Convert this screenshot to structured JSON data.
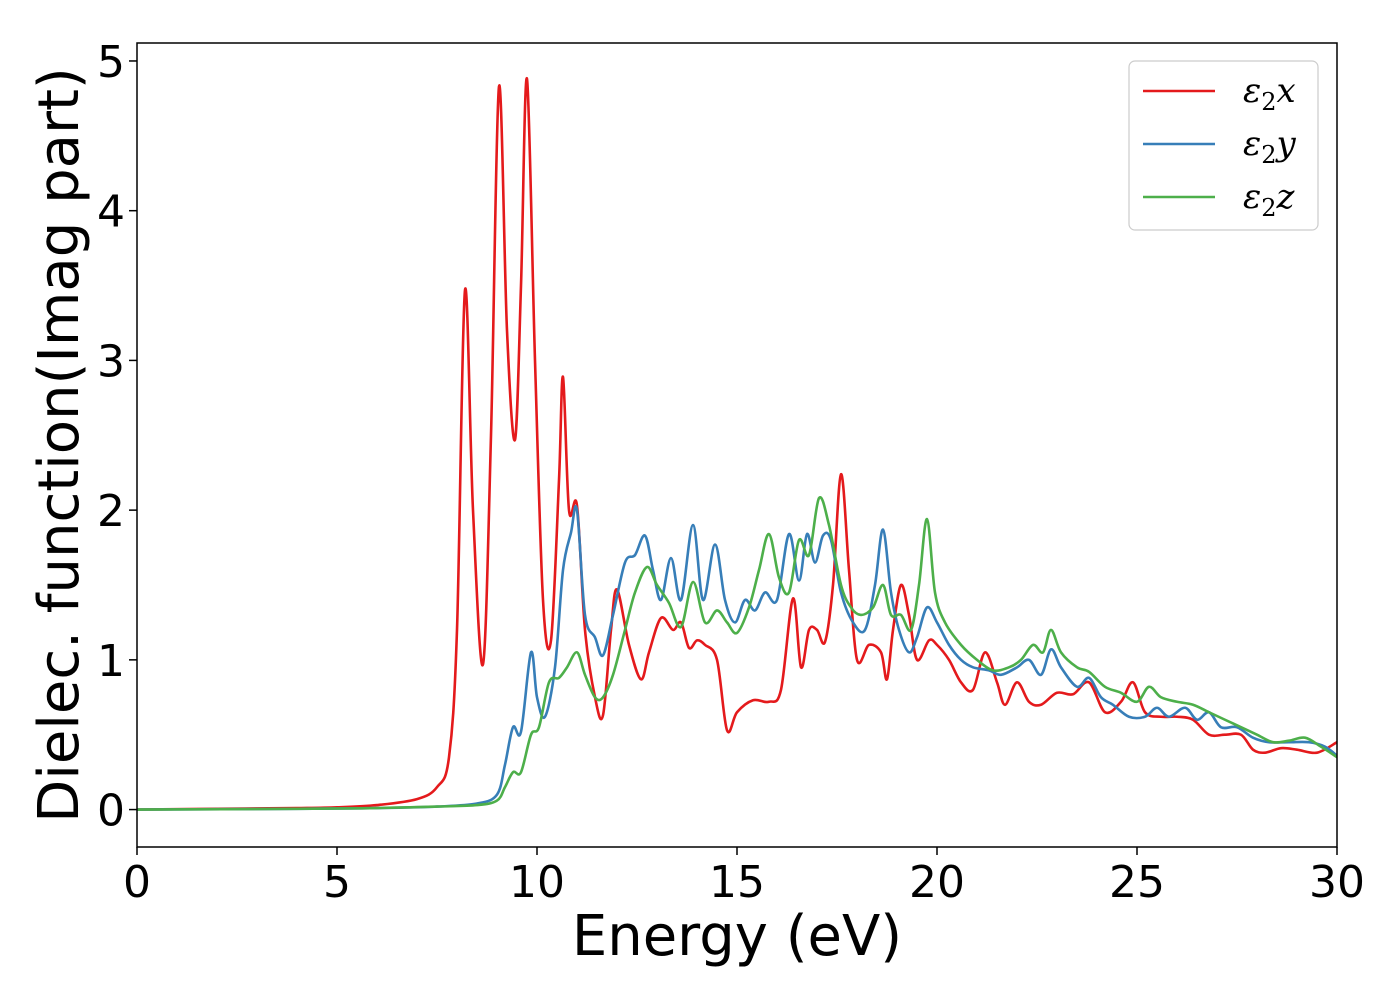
{
  "chart_data": {
    "type": "line",
    "title": "",
    "xlabel": "Energy (eV)",
    "ylabel": "Dielec. function(Imag part)",
    "xlim": [
      0,
      30
    ],
    "ylim": [
      -0.25,
      5.12
    ],
    "xticks": [
      0,
      5,
      10,
      15,
      20,
      25,
      30
    ],
    "yticks": [
      0,
      1,
      2,
      3,
      4,
      5
    ],
    "grid": false,
    "legend_position": "top-right",
    "series": [
      {
        "name": "ε₂x",
        "name_main": "ε",
        "name_sub": "2",
        "name_tail": "x",
        "color": "#e41a1c",
        "points": [
          [
            0,
            0.0
          ],
          [
            2,
            0.005
          ],
          [
            4,
            0.01
          ],
          [
            5,
            0.015
          ],
          [
            6,
            0.03
          ],
          [
            7,
            0.07
          ],
          [
            7.5,
            0.15
          ],
          [
            7.8,
            0.35
          ],
          [
            8.0,
            1.2
          ],
          [
            8.2,
            3.47
          ],
          [
            8.4,
            2.0
          ],
          [
            8.65,
            0.97
          ],
          [
            8.85,
            2.5
          ],
          [
            9.05,
            4.83
          ],
          [
            9.25,
            3.2
          ],
          [
            9.45,
            2.47
          ],
          [
            9.6,
            3.5
          ],
          [
            9.75,
            4.88
          ],
          [
            9.95,
            3.0
          ],
          [
            10.15,
            1.4
          ],
          [
            10.35,
            1.13
          ],
          [
            10.55,
            2.2
          ],
          [
            10.65,
            2.89
          ],
          [
            10.8,
            2.0
          ],
          [
            11.0,
            2.03
          ],
          [
            11.2,
            1.2
          ],
          [
            11.45,
            0.75
          ],
          [
            11.65,
            0.63
          ],
          [
            11.85,
            1.2
          ],
          [
            12.0,
            1.47
          ],
          [
            12.3,
            1.1
          ],
          [
            12.6,
            0.87
          ],
          [
            12.8,
            1.05
          ],
          [
            13.1,
            1.28
          ],
          [
            13.4,
            1.2
          ],
          [
            13.6,
            1.25
          ],
          [
            13.8,
            1.08
          ],
          [
            14.0,
            1.13
          ],
          [
            14.2,
            1.1
          ],
          [
            14.5,
            1.0
          ],
          [
            14.75,
            0.53
          ],
          [
            15.0,
            0.65
          ],
          [
            15.4,
            0.73
          ],
          [
            15.8,
            0.72
          ],
          [
            16.1,
            0.8
          ],
          [
            16.4,
            1.41
          ],
          [
            16.6,
            0.95
          ],
          [
            16.8,
            1.2
          ],
          [
            17.0,
            1.2
          ],
          [
            17.2,
            1.12
          ],
          [
            17.4,
            1.5
          ],
          [
            17.6,
            2.24
          ],
          [
            17.8,
            1.6
          ],
          [
            18.0,
            1.0
          ],
          [
            18.3,
            1.1
          ],
          [
            18.6,
            1.05
          ],
          [
            18.75,
            0.87
          ],
          [
            18.9,
            1.2
          ],
          [
            19.1,
            1.5
          ],
          [
            19.3,
            1.3
          ],
          [
            19.5,
            1.0
          ],
          [
            19.8,
            1.13
          ],
          [
            20.0,
            1.1
          ],
          [
            20.3,
            1.0
          ],
          [
            20.6,
            0.85
          ],
          [
            20.9,
            0.8
          ],
          [
            21.2,
            1.05
          ],
          [
            21.5,
            0.85
          ],
          [
            21.7,
            0.7
          ],
          [
            22.0,
            0.85
          ],
          [
            22.3,
            0.72
          ],
          [
            22.6,
            0.7
          ],
          [
            23.0,
            0.78
          ],
          [
            23.4,
            0.77
          ],
          [
            23.8,
            0.85
          ],
          [
            24.2,
            0.65
          ],
          [
            24.6,
            0.72
          ],
          [
            24.9,
            0.85
          ],
          [
            25.2,
            0.65
          ],
          [
            25.6,
            0.62
          ],
          [
            26.0,
            0.62
          ],
          [
            26.4,
            0.6
          ],
          [
            26.8,
            0.5
          ],
          [
            27.2,
            0.5
          ],
          [
            27.6,
            0.5
          ],
          [
            27.9,
            0.4
          ],
          [
            28.2,
            0.38
          ],
          [
            28.6,
            0.41
          ],
          [
            29.0,
            0.4
          ],
          [
            29.5,
            0.38
          ],
          [
            30.0,
            0.45
          ]
        ]
      },
      {
        "name": "ε₂y",
        "name_main": "ε",
        "name_sub": "2",
        "name_tail": "y",
        "color": "#377eb8",
        "points": [
          [
            0,
            0.0
          ],
          [
            4,
            0.005
          ],
          [
            6,
            0.01
          ],
          [
            7.5,
            0.02
          ],
          [
            8.5,
            0.04
          ],
          [
            9.0,
            0.1
          ],
          [
            9.2,
            0.3
          ],
          [
            9.4,
            0.55
          ],
          [
            9.6,
            0.52
          ],
          [
            9.85,
            1.05
          ],
          [
            10.0,
            0.75
          ],
          [
            10.2,
            0.62
          ],
          [
            10.45,
            0.95
          ],
          [
            10.65,
            1.6
          ],
          [
            10.85,
            1.85
          ],
          [
            11.0,
            2.0
          ],
          [
            11.2,
            1.3
          ],
          [
            11.45,
            1.15
          ],
          [
            11.65,
            1.03
          ],
          [
            11.9,
            1.3
          ],
          [
            12.2,
            1.65
          ],
          [
            12.45,
            1.7
          ],
          [
            12.7,
            1.83
          ],
          [
            12.9,
            1.6
          ],
          [
            13.1,
            1.4
          ],
          [
            13.35,
            1.68
          ],
          [
            13.6,
            1.4
          ],
          [
            13.9,
            1.9
          ],
          [
            14.15,
            1.4
          ],
          [
            14.45,
            1.77
          ],
          [
            14.7,
            1.4
          ],
          [
            14.95,
            1.25
          ],
          [
            15.2,
            1.4
          ],
          [
            15.45,
            1.33
          ],
          [
            15.7,
            1.45
          ],
          [
            16.0,
            1.4
          ],
          [
            16.3,
            1.84
          ],
          [
            16.55,
            1.53
          ],
          [
            16.75,
            1.84
          ],
          [
            16.95,
            1.65
          ],
          [
            17.15,
            1.83
          ],
          [
            17.35,
            1.8
          ],
          [
            17.6,
            1.45
          ],
          [
            17.9,
            1.25
          ],
          [
            18.2,
            1.2
          ],
          [
            18.45,
            1.5
          ],
          [
            18.65,
            1.87
          ],
          [
            18.85,
            1.45
          ],
          [
            19.05,
            1.2
          ],
          [
            19.3,
            1.05
          ],
          [
            19.5,
            1.15
          ],
          [
            19.75,
            1.35
          ],
          [
            20.0,
            1.25
          ],
          [
            20.3,
            1.1
          ],
          [
            20.6,
            1.0
          ],
          [
            20.9,
            0.95
          ],
          [
            21.3,
            0.93
          ],
          [
            21.6,
            0.9
          ],
          [
            22.0,
            0.95
          ],
          [
            22.3,
            1.0
          ],
          [
            22.6,
            0.9
          ],
          [
            22.85,
            1.07
          ],
          [
            23.1,
            0.95
          ],
          [
            23.5,
            0.82
          ],
          [
            23.8,
            0.88
          ],
          [
            24.1,
            0.75
          ],
          [
            24.4,
            0.7
          ],
          [
            24.8,
            0.62
          ],
          [
            25.2,
            0.62
          ],
          [
            25.5,
            0.68
          ],
          [
            25.8,
            0.62
          ],
          [
            26.2,
            0.68
          ],
          [
            26.5,
            0.6
          ],
          [
            26.8,
            0.65
          ],
          [
            27.1,
            0.55
          ],
          [
            27.5,
            0.55
          ],
          [
            27.9,
            0.48
          ],
          [
            28.3,
            0.45
          ],
          [
            28.8,
            0.45
          ],
          [
            29.3,
            0.45
          ],
          [
            29.7,
            0.42
          ],
          [
            30.0,
            0.36
          ]
        ]
      },
      {
        "name": "ε₂z",
        "name_main": "ε",
        "name_sub": "2",
        "name_tail": "z",
        "color": "#4daf4a",
        "points": [
          [
            0,
            0.0
          ],
          [
            4,
            0.005
          ],
          [
            6,
            0.01
          ],
          [
            7.5,
            0.02
          ],
          [
            8.5,
            0.03
          ],
          [
            9.0,
            0.06
          ],
          [
            9.2,
            0.15
          ],
          [
            9.4,
            0.25
          ],
          [
            9.6,
            0.25
          ],
          [
            9.85,
            0.5
          ],
          [
            10.05,
            0.55
          ],
          [
            10.3,
            0.85
          ],
          [
            10.55,
            0.88
          ],
          [
            10.75,
            0.95
          ],
          [
            11.0,
            1.05
          ],
          [
            11.2,
            0.9
          ],
          [
            11.45,
            0.75
          ],
          [
            11.65,
            0.75
          ],
          [
            11.9,
            0.9
          ],
          [
            12.2,
            1.2
          ],
          [
            12.45,
            1.45
          ],
          [
            12.75,
            1.62
          ],
          [
            13.0,
            1.5
          ],
          [
            13.3,
            1.38
          ],
          [
            13.6,
            1.22
          ],
          [
            13.9,
            1.52
          ],
          [
            14.2,
            1.25
          ],
          [
            14.5,
            1.33
          ],
          [
            14.75,
            1.25
          ],
          [
            15.0,
            1.18
          ],
          [
            15.3,
            1.35
          ],
          [
            15.55,
            1.6
          ],
          [
            15.8,
            1.84
          ],
          [
            16.05,
            1.55
          ],
          [
            16.3,
            1.45
          ],
          [
            16.55,
            1.8
          ],
          [
            16.8,
            1.7
          ],
          [
            17.05,
            2.08
          ],
          [
            17.3,
            1.9
          ],
          [
            17.6,
            1.5
          ],
          [
            17.85,
            1.35
          ],
          [
            18.1,
            1.3
          ],
          [
            18.4,
            1.35
          ],
          [
            18.65,
            1.5
          ],
          [
            18.85,
            1.3
          ],
          [
            19.1,
            1.3
          ],
          [
            19.35,
            1.2
          ],
          [
            19.55,
            1.5
          ],
          [
            19.75,
            1.94
          ],
          [
            19.95,
            1.45
          ],
          [
            20.2,
            1.25
          ],
          [
            20.6,
            1.1
          ],
          [
            21.0,
            1.0
          ],
          [
            21.4,
            0.93
          ],
          [
            21.8,
            0.95
          ],
          [
            22.1,
            1.0
          ],
          [
            22.4,
            1.1
          ],
          [
            22.65,
            1.05
          ],
          [
            22.85,
            1.2
          ],
          [
            23.1,
            1.05
          ],
          [
            23.5,
            0.95
          ],
          [
            23.8,
            0.92
          ],
          [
            24.2,
            0.82
          ],
          [
            24.6,
            0.78
          ],
          [
            25.0,
            0.72
          ],
          [
            25.3,
            0.82
          ],
          [
            25.6,
            0.75
          ],
          [
            26.0,
            0.72
          ],
          [
            26.4,
            0.7
          ],
          [
            26.8,
            0.65
          ],
          [
            27.2,
            0.6
          ],
          [
            27.6,
            0.55
          ],
          [
            28.0,
            0.5
          ],
          [
            28.4,
            0.45
          ],
          [
            28.8,
            0.46
          ],
          [
            29.2,
            0.48
          ],
          [
            29.6,
            0.42
          ],
          [
            30.0,
            0.35
          ]
        ]
      }
    ]
  }
}
